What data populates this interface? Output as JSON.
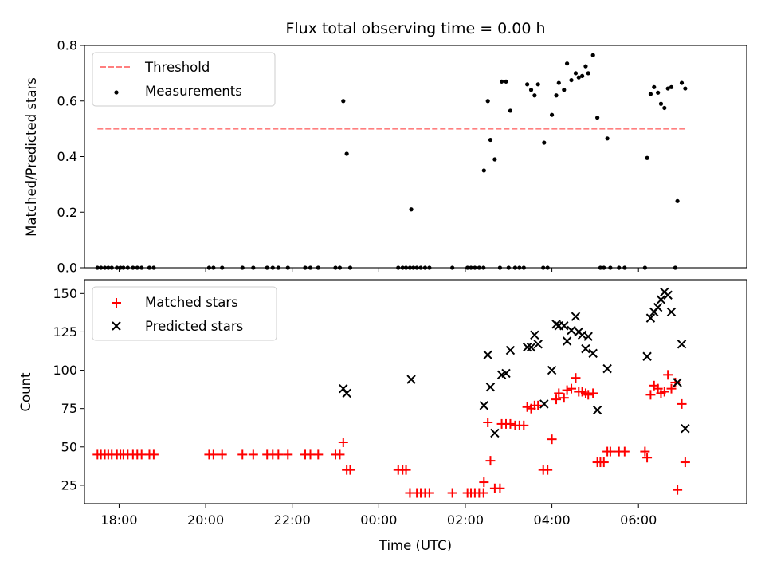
{
  "chart_data": [
    {
      "type": "scatter",
      "title": "Flux total observing time = 0.00 h",
      "xlabel": "",
      "ylabel": "Matched/Predicted stars",
      "xlim": [
        -6.8,
        8.5
      ],
      "ylim": [
        0.0,
        0.8
      ],
      "yticks": [
        0.0,
        0.2,
        0.4,
        0.6,
        0.8
      ],
      "ytick_labels": [
        "0.0",
        "0.2",
        "0.4",
        "0.6",
        "0.8"
      ],
      "legend_position": "top-left",
      "threshold": {
        "name": "Threshold",
        "value": 0.5,
        "x_range": [
          -6.5,
          7.1
        ],
        "color": "#ff7f7f"
      },
      "series": [
        {
          "name": "Measurements",
          "color": "#000000",
          "points": [
            [
              -6.5,
              0
            ],
            [
              -6.42,
              0
            ],
            [
              -6.33,
              0
            ],
            [
              -6.25,
              0
            ],
            [
              -6.17,
              0
            ],
            [
              -6.05,
              0
            ],
            [
              -5.97,
              0
            ],
            [
              -5.9,
              0
            ],
            [
              -5.8,
              0
            ],
            [
              -5.68,
              0
            ],
            [
              -5.58,
              0
            ],
            [
              -5.48,
              0
            ],
            [
              -5.3,
              0
            ],
            [
              -5.2,
              0
            ],
            [
              -3.92,
              0
            ],
            [
              -3.82,
              0
            ],
            [
              -3.62,
              0
            ],
            [
              -3.15,
              0
            ],
            [
              -2.9,
              0
            ],
            [
              -2.58,
              0
            ],
            [
              -2.45,
              0
            ],
            [
              -2.32,
              0
            ],
            [
              -2.1,
              0
            ],
            [
              -1.7,
              0
            ],
            [
              -1.58,
              0
            ],
            [
              -1.4,
              0
            ],
            [
              -1.0,
              0
            ],
            [
              -0.9,
              0
            ],
            [
              -0.66,
              0
            ],
            [
              -0.82,
              0.6
            ],
            [
              -0.74,
              0.41
            ],
            [
              0.45,
              0
            ],
            [
              0.55,
              0
            ],
            [
              0.63,
              0
            ],
            [
              0.72,
              0
            ],
            [
              0.8,
              0
            ],
            [
              0.88,
              0
            ],
            [
              0.97,
              0
            ],
            [
              1.07,
              0
            ],
            [
              1.17,
              0
            ],
            [
              0.75,
              0.21
            ],
            [
              1.7,
              0
            ],
            [
              2.05,
              0
            ],
            [
              2.13,
              0
            ],
            [
              2.22,
              0
            ],
            [
              2.32,
              0
            ],
            [
              2.42,
              0
            ],
            [
              2.43,
              0.35
            ],
            [
              2.52,
              0.6
            ],
            [
              2.58,
              0.46
            ],
            [
              2.68,
              0.39
            ],
            [
              2.84,
              0.67
            ],
            [
              2.94,
              0.67
            ],
            [
              3.04,
              0.565
            ],
            [
              2.8,
              0
            ],
            [
              3.0,
              0
            ],
            [
              3.15,
              0
            ],
            [
              3.25,
              0
            ],
            [
              3.35,
              0
            ],
            [
              3.43,
              0.66
            ],
            [
              3.52,
              0.64
            ],
            [
              3.6,
              0.62
            ],
            [
              3.68,
              0.66
            ],
            [
              3.82,
              0.45
            ],
            [
              4.0,
              0.55
            ],
            [
              4.1,
              0.62
            ],
            [
              4.16,
              0.665
            ],
            [
              4.28,
              0.64
            ],
            [
              4.35,
              0.735
            ],
            [
              4.45,
              0.675
            ],
            [
              4.55,
              0.7
            ],
            [
              4.62,
              0.685
            ],
            [
              4.7,
              0.69
            ],
            [
              4.78,
              0.725
            ],
            [
              4.84,
              0.7
            ],
            [
              4.95,
              0.765
            ],
            [
              5.05,
              0.54
            ],
            [
              5.28,
              0.465
            ],
            [
              3.8,
              0
            ],
            [
              3.9,
              0
            ],
            [
              5.12,
              0
            ],
            [
              5.2,
              0
            ],
            [
              5.35,
              0
            ],
            [
              5.55,
              0
            ],
            [
              5.68,
              0
            ],
            [
              6.15,
              0
            ],
            [
              6.2,
              0.395
            ],
            [
              6.28,
              0.625
            ],
            [
              6.36,
              0.65
            ],
            [
              6.45,
              0.63
            ],
            [
              6.52,
              0.59
            ],
            [
              6.6,
              0.575
            ],
            [
              6.68,
              0.645
            ],
            [
              6.76,
              0.65
            ],
            [
              6.9,
              0.24
            ],
            [
              7.0,
              0.665
            ],
            [
              7.08,
              0.645
            ],
            [
              6.85,
              0
            ]
          ]
        }
      ]
    },
    {
      "type": "scatter",
      "title": "",
      "xlabel": "Time (UTC)",
      "ylabel": "Count",
      "xlim": [
        -6.8,
        8.5
      ],
      "ylim": [
        13,
        159
      ],
      "yticks": [
        25,
        50,
        75,
        100,
        125,
        150
      ],
      "ytick_labels": [
        "25",
        "50",
        "75",
        "100",
        "125",
        "150"
      ],
      "xticks": [
        -6,
        -4,
        -2,
        0,
        2,
        4,
        6
      ],
      "xtick_labels": [
        "18:00",
        "20:00",
        "22:00",
        "00:00",
        "02:00",
        "04:00",
        "06:00"
      ],
      "legend_position": "top-left",
      "series": [
        {
          "name": "Matched stars",
          "marker": "plus",
          "color": "#ff0000",
          "points": [
            [
              -6.5,
              45
            ],
            [
              -6.42,
              45
            ],
            [
              -6.33,
              45
            ],
            [
              -6.25,
              45
            ],
            [
              -6.17,
              45
            ],
            [
              -6.05,
              45
            ],
            [
              -5.97,
              45
            ],
            [
              -5.9,
              45
            ],
            [
              -5.8,
              45
            ],
            [
              -5.68,
              45
            ],
            [
              -5.58,
              45
            ],
            [
              -5.48,
              45
            ],
            [
              -5.3,
              45
            ],
            [
              -5.2,
              45
            ],
            [
              -3.92,
              45
            ],
            [
              -3.82,
              45
            ],
            [
              -3.62,
              45
            ],
            [
              -3.15,
              45
            ],
            [
              -2.9,
              45
            ],
            [
              -2.58,
              45
            ],
            [
              -2.45,
              45
            ],
            [
              -2.32,
              45
            ],
            [
              -2.1,
              45
            ],
            [
              -1.7,
              45
            ],
            [
              -1.58,
              45
            ],
            [
              -1.4,
              45
            ],
            [
              -1.0,
              45
            ],
            [
              -0.9,
              45
            ],
            [
              -0.82,
              53
            ],
            [
              -0.74,
              35
            ],
            [
              -0.66,
              35
            ],
            [
              0.45,
              35
            ],
            [
              0.55,
              35
            ],
            [
              0.63,
              35
            ],
            [
              0.72,
              20
            ],
            [
              0.88,
              20
            ],
            [
              0.97,
              20
            ],
            [
              1.07,
              20
            ],
            [
              1.17,
              20
            ],
            [
              1.7,
              20
            ],
            [
              2.05,
              20
            ],
            [
              2.13,
              20
            ],
            [
              2.22,
              20
            ],
            [
              2.32,
              20
            ],
            [
              2.42,
              20
            ],
            [
              2.43,
              27
            ],
            [
              2.52,
              66
            ],
            [
              2.58,
              41
            ],
            [
              2.68,
              23
            ],
            [
              2.8,
              23
            ],
            [
              2.84,
              65
            ],
            [
              2.94,
              65
            ],
            [
              3.04,
              65
            ],
            [
              3.15,
              64
            ],
            [
              3.25,
              64
            ],
            [
              3.35,
              64
            ],
            [
              3.43,
              76
            ],
            [
              3.52,
              75
            ],
            [
              3.6,
              77
            ],
            [
              3.68,
              77
            ],
            [
              3.8,
              35
            ],
            [
              3.9,
              35
            ],
            [
              4.0,
              55
            ],
            [
              4.1,
              81
            ],
            [
              4.16,
              85
            ],
            [
              4.28,
              82
            ],
            [
              4.35,
              87
            ],
            [
              4.45,
              88
            ],
            [
              4.55,
              95
            ],
            [
              4.62,
              86
            ],
            [
              4.7,
              86
            ],
            [
              4.78,
              85
            ],
            [
              4.84,
              84
            ],
            [
              4.95,
              85
            ],
            [
              5.05,
              40
            ],
            [
              5.12,
              40
            ],
            [
              5.2,
              40
            ],
            [
              5.28,
              47
            ],
            [
              5.35,
              47
            ],
            [
              5.55,
              47
            ],
            [
              5.68,
              47
            ],
            [
              6.15,
              47
            ],
            [
              6.2,
              43
            ],
            [
              6.28,
              84
            ],
            [
              6.36,
              90
            ],
            [
              6.45,
              88
            ],
            [
              6.52,
              85
            ],
            [
              6.6,
              86
            ],
            [
              6.68,
              97
            ],
            [
              6.76,
              88
            ],
            [
              6.85,
              92
            ],
            [
              6.9,
              22
            ],
            [
              7.0,
              78
            ],
            [
              7.08,
              40
            ]
          ]
        },
        {
          "name": "Predicted stars",
          "marker": "x",
          "color": "#000000",
          "points": [
            [
              -0.82,
              88
            ],
            [
              -0.74,
              85
            ],
            [
              0.75,
              94
            ],
            [
              2.43,
              77
            ],
            [
              2.52,
              110
            ],
            [
              2.58,
              89
            ],
            [
              2.68,
              59
            ],
            [
              2.84,
              97
            ],
            [
              2.94,
              98
            ],
            [
              3.04,
              113
            ],
            [
              3.43,
              115
            ],
            [
              3.52,
              115
            ],
            [
              3.6,
              123
            ],
            [
              3.68,
              117
            ],
            [
              3.82,
              78
            ],
            [
              4.0,
              100
            ],
            [
              4.1,
              130
            ],
            [
              4.16,
              129
            ],
            [
              4.28,
              129
            ],
            [
              4.35,
              119
            ],
            [
              4.45,
              126
            ],
            [
              4.55,
              135
            ],
            [
              4.62,
              125
            ],
            [
              4.7,
              123
            ],
            [
              4.78,
              114
            ],
            [
              4.84,
              122
            ],
            [
              4.95,
              111
            ],
            [
              5.05,
              74
            ],
            [
              5.28,
              101
            ],
            [
              6.2,
              109
            ],
            [
              6.28,
              134
            ],
            [
              6.36,
              138
            ],
            [
              6.45,
              141
            ],
            [
              6.52,
              146
            ],
            [
              6.6,
              151
            ],
            [
              6.68,
              149
            ],
            [
              6.76,
              138
            ],
            [
              6.9,
              92
            ],
            [
              7.0,
              117
            ],
            [
              7.08,
              62
            ]
          ]
        }
      ]
    }
  ]
}
